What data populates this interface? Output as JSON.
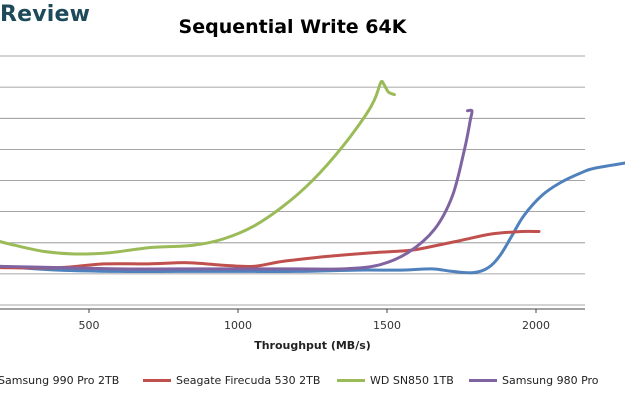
{
  "brand_text": "Review",
  "chart_data": {
    "type": "line",
    "title": "Sequential Write 64K",
    "xlabel": "Throughput (MB/s)",
    "ylabel": "",
    "x_tick_labels": [
      "500",
      "1000",
      "1500",
      "2000"
    ],
    "x_ticks": [
      500,
      1000,
      1500,
      2000
    ],
    "xlim": [
      200,
      2350
    ],
    "ylim": [
      0,
      10
    ],
    "y_grid_count": 9,
    "grid": true,
    "legend_position": "bottom",
    "series": [
      {
        "name": "Samsung 990 Pro 2TB",
        "color": "#4f81bd",
        "points": [
          [
            200,
            1.55
          ],
          [
            400,
            1.4
          ],
          [
            600,
            1.35
          ],
          [
            800,
            1.35
          ],
          [
            1000,
            1.35
          ],
          [
            1200,
            1.35
          ],
          [
            1400,
            1.4
          ],
          [
            1550,
            1.4
          ],
          [
            1650,
            1.45
          ],
          [
            1720,
            1.35
          ],
          [
            1790,
            1.3
          ],
          [
            1840,
            1.5
          ],
          [
            1880,
            2.0
          ],
          [
            1920,
            2.8
          ],
          [
            1960,
            3.6
          ],
          [
            2020,
            4.4
          ],
          [
            2080,
            4.9
          ],
          [
            2150,
            5.3
          ],
          [
            2200,
            5.5
          ],
          [
            2350,
            5.8
          ]
        ]
      },
      {
        "name": "Seagate Firecuda 530 2TB",
        "color": "#c0504d",
        "points": [
          [
            200,
            1.5
          ],
          [
            400,
            1.5
          ],
          [
            550,
            1.65
          ],
          [
            700,
            1.65
          ],
          [
            830,
            1.7
          ],
          [
            950,
            1.6
          ],
          [
            1050,
            1.55
          ],
          [
            1150,
            1.75
          ],
          [
            1300,
            1.95
          ],
          [
            1450,
            2.1
          ],
          [
            1580,
            2.2
          ],
          [
            1650,
            2.35
          ],
          [
            1750,
            2.6
          ],
          [
            1850,
            2.85
          ],
          [
            1950,
            2.95
          ],
          [
            2010,
            2.95
          ]
        ]
      },
      {
        "name": "WD SN850 1TB",
        "color": "#9bbb59",
        "points": [
          [
            200,
            2.55
          ],
          [
            250,
            2.4
          ],
          [
            350,
            2.15
          ],
          [
            450,
            2.05
          ],
          [
            570,
            2.1
          ],
          [
            700,
            2.3
          ],
          [
            850,
            2.4
          ],
          [
            950,
            2.65
          ],
          [
            1050,
            3.15
          ],
          [
            1150,
            3.95
          ],
          [
            1250,
            5.0
          ],
          [
            1350,
            6.35
          ],
          [
            1430,
            7.65
          ],
          [
            1460,
            8.3
          ],
          [
            1480,
            8.95
          ],
          [
            1490,
            8.85
          ],
          [
            1505,
            8.55
          ],
          [
            1525,
            8.45
          ]
        ]
      },
      {
        "name": "Samsung 980 Pro",
        "color": "#8064a2",
        "points": [
          [
            200,
            1.55
          ],
          [
            400,
            1.5
          ],
          [
            600,
            1.45
          ],
          [
            800,
            1.45
          ],
          [
            1000,
            1.45
          ],
          [
            1200,
            1.45
          ],
          [
            1350,
            1.45
          ],
          [
            1470,
            1.6
          ],
          [
            1570,
            2.1
          ],
          [
            1660,
            3.05
          ],
          [
            1720,
            4.4
          ],
          [
            1760,
            6.25
          ],
          [
            1780,
            7.45
          ],
          [
            1785,
            7.8
          ],
          [
            1770,
            7.8
          ]
        ]
      }
    ]
  }
}
